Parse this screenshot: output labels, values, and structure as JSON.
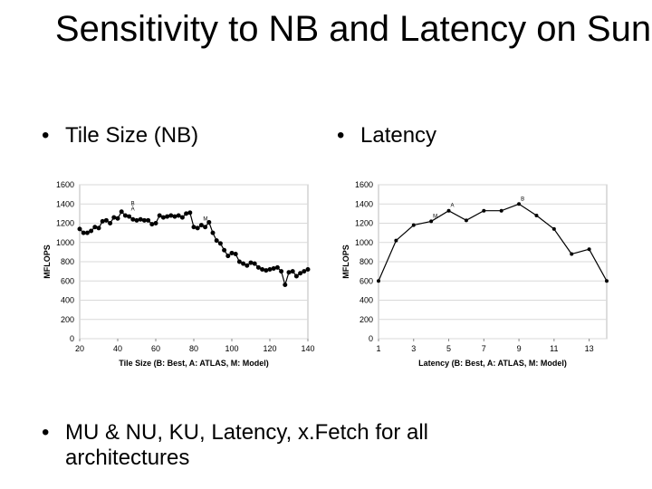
{
  "slide": {
    "title": "Sensitivity to NB and Latency on Sun",
    "bullet_marker": "•",
    "bullets": [
      "Tile Size (NB)",
      "Latency",
      "MU & NU, KU, Latency, x.Fetch for all architectures"
    ]
  },
  "chart_data": [
    {
      "type": "line",
      "xlabel": "Tile Size (B: Best, A: ATLAS, M: Model)",
      "ylabel": "MFLOPS",
      "xlim": [
        20,
        140
      ],
      "ylim": [
        0,
        1600
      ],
      "xticks": [
        "20",
        "40",
        "60",
        "80",
        "100",
        "120",
        "140"
      ],
      "yticks": [
        "0",
        "200",
        "400",
        "600",
        "800",
        "1000",
        "1200",
        "1400",
        "1600"
      ],
      "grid": true,
      "series": [
        {
          "x": [
            20,
            22,
            24,
            26,
            28,
            30,
            32,
            34,
            36,
            38,
            40,
            42,
            44,
            46,
            48,
            50,
            52,
            54,
            56,
            58,
            60,
            62,
            64,
            66,
            68,
            70,
            72,
            74,
            76,
            78,
            80,
            82,
            84,
            86,
            88,
            90,
            92,
            94,
            96,
            98,
            100,
            102,
            104,
            106,
            108,
            110,
            112,
            114,
            116,
            118,
            120,
            122,
            124,
            126,
            128,
            130,
            132,
            134,
            136,
            138,
            140
          ],
          "y": [
            1140,
            1100,
            1100,
            1120,
            1160,
            1150,
            1220,
            1230,
            1200,
            1260,
            1250,
            1320,
            1280,
            1270,
            1240,
            1230,
            1240,
            1230,
            1230,
            1190,
            1200,
            1280,
            1260,
            1270,
            1280,
            1270,
            1280,
            1260,
            1300,
            1310,
            1160,
            1150,
            1180,
            1160,
            1210,
            1100,
            1020,
            990,
            920,
            860,
            890,
            880,
            800,
            780,
            760,
            790,
            780,
            740,
            720,
            710,
            720,
            730,
            740,
            700,
            560,
            690,
            700,
            650,
            680,
            700,
            720
          ],
          "color": "#000000"
        }
      ],
      "annotations": [
        {
          "label": "B",
          "x": 46,
          "y": 1350
        },
        {
          "label": "A",
          "x": 46,
          "y": 1295
        },
        {
          "label": "M",
          "x": 84,
          "y": 1190
        }
      ]
    },
    {
      "type": "line",
      "xlabel": "Latency (B: Best, A: ATLAS, M: Model)",
      "ylabel": "MFLOPS",
      "xlim": [
        1,
        14
      ],
      "ylim": [
        0,
        1600
      ],
      "xticks": [
        "1",
        "3",
        "5",
        "7",
        "9",
        "11",
        "13"
      ],
      "yticks": [
        "0",
        "200",
        "400",
        "600",
        "800",
        "1000",
        "1200",
        "1400",
        "1600"
      ],
      "grid": true,
      "series": [
        {
          "x": [
            1,
            2,
            3,
            4,
            5,
            6,
            7,
            8,
            9,
            10,
            11,
            12,
            13,
            14
          ],
          "y": [
            600,
            1020,
            1180,
            1220,
            1330,
            1230,
            1330,
            1330,
            1400,
            1280,
            1140,
            880,
            930,
            600
          ],
          "color": "#000000"
        }
      ],
      "annotations": [
        {
          "label": "B",
          "x": 9,
          "y": 1400
        },
        {
          "label": "A",
          "x": 5,
          "y": 1330
        },
        {
          "label": "M",
          "x": 4,
          "y": 1220
        }
      ]
    }
  ]
}
